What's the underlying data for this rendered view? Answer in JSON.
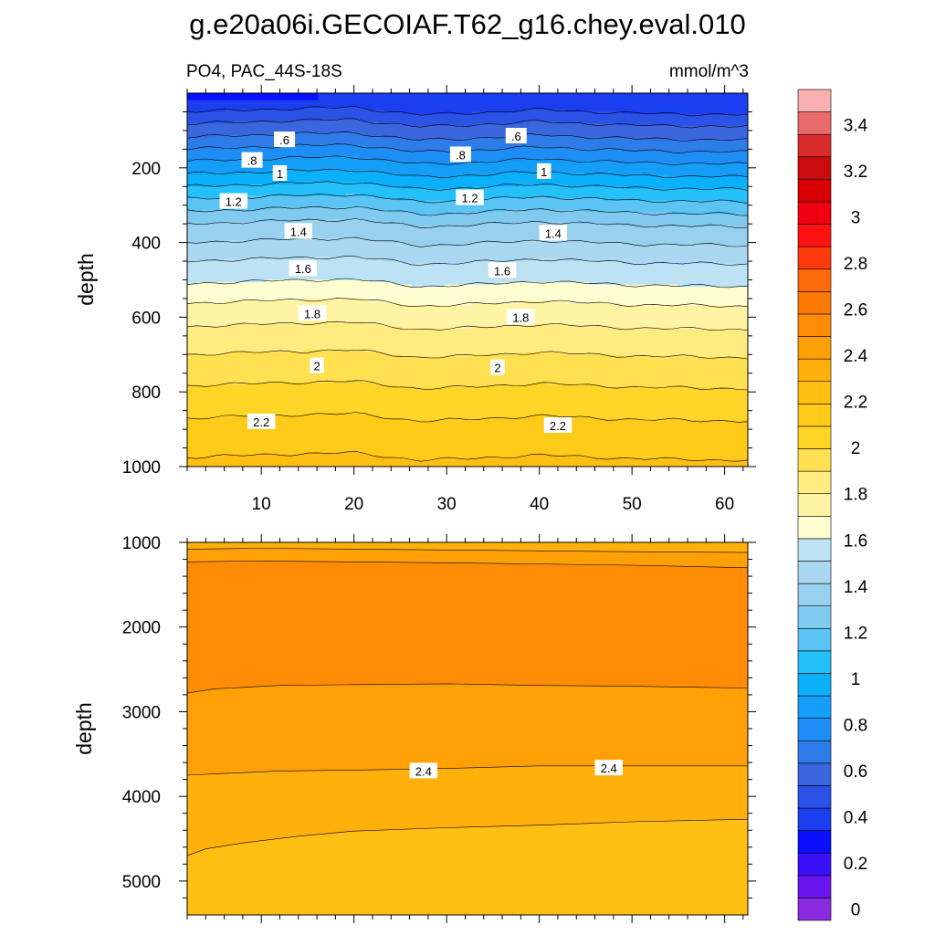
{
  "title": "g.e20a06i.GECOIAF.T62_g16.chey.eval.010",
  "chart_data": {
    "type": "heatmap",
    "variable_label": "PO4, PAC_44S-18S",
    "units": "mmol/m^3",
    "panels": [
      {
        "name": "upper",
        "ylabel": "depth",
        "x_range": [
          2,
          62.5
        ],
        "y_range": [
          0,
          1000
        ],
        "y_reversed": true,
        "y_ticks": [
          200,
          400,
          600,
          800,
          1000
        ],
        "y_tick_labels": [
          "200",
          "400",
          "600",
          "800",
          "1000"
        ],
        "x_ticks": [
          10,
          20,
          30,
          40,
          50,
          60
        ],
        "x_tick_labels": [
          "10",
          "20",
          "30",
          "40",
          "50",
          "60"
        ],
        "x_minor_ticks": [
          2,
          4,
          6,
          8,
          12,
          14,
          16,
          18,
          22,
          24,
          26,
          28,
          32,
          34,
          36,
          38,
          42,
          44,
          46,
          48,
          52,
          54,
          56,
          58,
          62
        ],
        "y_minor_ticks": [
          50,
          100,
          150,
          250,
          300,
          350,
          450,
          500,
          550,
          650,
          700,
          750,
          850,
          900,
          950
        ],
        "profile_depths": [
          0,
          25,
          50,
          75,
          100,
          125,
          150,
          175,
          200,
          250,
          300,
          350,
          400,
          450,
          500,
          550,
          600,
          650,
          700,
          750,
          800,
          850,
          900,
          950,
          1000
        ],
        "profile_values": [
          0.42,
          0.44,
          0.5,
          0.58,
          0.65,
          0.72,
          0.8,
          0.88,
          0.95,
          1.1,
          1.25,
          1.4,
          1.5,
          1.6,
          1.68,
          1.78,
          1.86,
          1.94,
          2.0,
          2.06,
          2.12,
          2.18,
          2.23,
          2.28,
          2.32
        ],
        "x_shift_points": [
          2,
          12,
          20,
          27,
          32,
          40,
          50,
          62.5
        ],
        "x_shift_depth": [
          0,
          -8,
          -12,
          8,
          4,
          -6,
          4,
          8
        ],
        "contour_levels": [
          0.5,
          0.6,
          0.7,
          0.8,
          0.9,
          1.0,
          1.1,
          1.2,
          1.3,
          1.4,
          1.5,
          1.6,
          1.7,
          1.8,
          1.9,
          2.0,
          2.1,
          2.2,
          2.3
        ],
        "contour_labels": [
          {
            "text": ".6",
            "x": 12.5,
            "y": 125
          },
          {
            "text": ".6",
            "x": 37.5,
            "y": 115
          },
          {
            "text": ".8",
            "x": 9,
            "y": 180
          },
          {
            "text": ".8",
            "x": 31.5,
            "y": 165
          },
          {
            "text": "1",
            "x": 12,
            "y": 215
          },
          {
            "text": "1",
            "x": 40.5,
            "y": 210
          },
          {
            "text": "1.2",
            "x": 7,
            "y": 290
          },
          {
            "text": "1.2",
            "x": 32.5,
            "y": 280
          },
          {
            "text": "1.4",
            "x": 14,
            "y": 370
          },
          {
            "text": "1.4",
            "x": 41.5,
            "y": 375
          },
          {
            "text": "1.6",
            "x": 14.5,
            "y": 470
          },
          {
            "text": "1.6",
            "x": 36,
            "y": 475
          },
          {
            "text": "1.8",
            "x": 15.5,
            "y": 590
          },
          {
            "text": "1.8",
            "x": 38,
            "y": 600
          },
          {
            "text": "2",
            "x": 16,
            "y": 730
          },
          {
            "text": "2",
            "x": 35.5,
            "y": 735
          },
          {
            "text": "2.2",
            "x": 10,
            "y": 880
          },
          {
            "text": "2.2",
            "x": 42,
            "y": 890
          }
        ]
      },
      {
        "name": "lower",
        "ylabel": "depth",
        "x_range": [
          2,
          62.5
        ],
        "y_range": [
          1000,
          5400
        ],
        "y_reversed": true,
        "y_ticks": [
          1000,
          2000,
          3000,
          4000,
          5000
        ],
        "y_tick_labels": [
          "1000",
          "2000",
          "3000",
          "4000",
          "5000"
        ],
        "x_ticks": [
          10,
          20,
          30,
          40,
          50,
          60
        ],
        "x_tick_labels": [],
        "x_minor_ticks": [
          2,
          4,
          6,
          8,
          12,
          14,
          16,
          18,
          22,
          24,
          26,
          28,
          32,
          34,
          36,
          38,
          42,
          44,
          46,
          48,
          52,
          54,
          56,
          58,
          62
        ],
        "y_minor_ticks": [
          1200,
          1400,
          1600,
          1800,
          2200,
          2400,
          2600,
          2800,
          3200,
          3400,
          3600,
          3800,
          4200,
          4400,
          4600,
          4800,
          5200
        ],
        "bands": [
          {
            "from": 2.4,
            "to": 2.5,
            "top": [
              [
                2,
                1000
              ],
              [
                62.5,
                1000
              ]
            ],
            "bottom": [
              [
                2,
                1080
              ],
              [
                10,
                1070
              ],
              [
                30,
                1090
              ],
              [
                50,
                1110
              ],
              [
                62.5,
                1120
              ]
            ]
          },
          {
            "from": 2.5,
            "to": 2.6,
            "top": [
              [
                2,
                1080
              ],
              [
                10,
                1070
              ],
              [
                30,
                1090
              ],
              [
                50,
                1110
              ],
              [
                62.5,
                1120
              ]
            ],
            "bottom": [
              [
                2,
                1230
              ],
              [
                10,
                1220
              ],
              [
                30,
                1240
              ],
              [
                50,
                1270
              ],
              [
                62.5,
                1300
              ]
            ]
          },
          {
            "from": 2.6,
            "to": 2.7,
            "top": [
              [
                2,
                1230
              ],
              [
                10,
                1220
              ],
              [
                30,
                1240
              ],
              [
                50,
                1270
              ],
              [
                62.5,
                1300
              ]
            ],
            "bottom": [
              [
                2,
                2780
              ],
              [
                5,
                2730
              ],
              [
                12,
                2690
              ],
              [
                20,
                2680
              ],
              [
                30,
                2670
              ],
              [
                40,
                2690
              ],
              [
                50,
                2700
              ],
              [
                62.5,
                2720
              ]
            ]
          },
          {
            "from": 2.5,
            "to": 2.6,
            "top": [
              [
                2,
                2780
              ],
              [
                5,
                2730
              ],
              [
                12,
                2690
              ],
              [
                20,
                2680
              ],
              [
                30,
                2670
              ],
              [
                40,
                2690
              ],
              [
                50,
                2700
              ],
              [
                62.5,
                2720
              ]
            ],
            "bottom": [
              [
                2,
                3750
              ],
              [
                6,
                3730
              ],
              [
                12,
                3700
              ],
              [
                20,
                3690
              ],
              [
                30,
                3670
              ],
              [
                40,
                3640
              ],
              [
                50,
                3640
              ],
              [
                62.5,
                3640
              ]
            ]
          },
          {
            "from": 2.4,
            "to": 2.5,
            "top": [
              [
                2,
                3750
              ],
              [
                6,
                3730
              ],
              [
                12,
                3700
              ],
              [
                20,
                3690
              ],
              [
                30,
                3670
              ],
              [
                40,
                3640
              ],
              [
                50,
                3640
              ],
              [
                62.5,
                3640
              ]
            ],
            "bottom": [
              [
                2,
                4700
              ],
              [
                4,
                4620
              ],
              [
                8,
                4550
              ],
              [
                14,
                4470
              ],
              [
                20,
                4410
              ],
              [
                30,
                4370
              ],
              [
                40,
                4340
              ],
              [
                50,
                4300
              ],
              [
                62.5,
                4270
              ]
            ]
          },
          {
            "from": 2.3,
            "to": 2.4,
            "top": [
              [
                2,
                4700
              ],
              [
                4,
                4620
              ],
              [
                8,
                4550
              ],
              [
                14,
                4470
              ],
              [
                20,
                4410
              ],
              [
                30,
                4370
              ],
              [
                40,
                4340
              ],
              [
                50,
                4300
              ],
              [
                62.5,
                4270
              ]
            ],
            "bottom": [
              [
                2,
                5400
              ],
              [
                62.5,
                5400
              ]
            ]
          }
        ],
        "contour_labels": [
          {
            "text": "2.4",
            "x": 27.5,
            "y": 3700
          },
          {
            "text": "2.4",
            "x": 47.5,
            "y": 3665
          }
        ]
      }
    ],
    "colorbar": {
      "levels": [
        0,
        0.1,
        0.2,
        0.3,
        0.4,
        0.5,
        0.6,
        0.7,
        0.8,
        0.9,
        1.0,
        1.1,
        1.2,
        1.3,
        1.4,
        1.5,
        1.6,
        1.7,
        1.8,
        1.9,
        2.0,
        2.1,
        2.2,
        2.3,
        2.4,
        2.5,
        2.6,
        2.7,
        2.8,
        2.9,
        3.0,
        3.1,
        3.2,
        3.3,
        3.4,
        3.5,
        3.6
      ],
      "labels": [
        "0",
        "0.2",
        "0.4",
        "0.6",
        "0.8",
        "1",
        "1.2",
        "1.4",
        "1.6",
        "1.8",
        "2",
        "2.2",
        "2.4",
        "2.6",
        "2.8",
        "3",
        "3.2",
        "3.4"
      ],
      "label_values": [
        0,
        0.2,
        0.4,
        0.6,
        0.8,
        1.0,
        1.2,
        1.4,
        1.6,
        1.8,
        2.0,
        2.2,
        2.4,
        2.6,
        2.8,
        3.0,
        3.2,
        3.4
      ],
      "colors": [
        "#8a2be2",
        "#6a14f0",
        "#3a10f8",
        "#0a10ff",
        "#1a3ef0",
        "#2a52e6",
        "#3a66de",
        "#2e7ce8",
        "#1e8ef6",
        "#149ef8",
        "#0ab0fa",
        "#24c0fa",
        "#5cc4f4",
        "#80caf0",
        "#98d0f0",
        "#aad8f2",
        "#bce2f4",
        "#fffed0",
        "#fff4a4",
        "#ffec80",
        "#ffe050",
        "#ffd628",
        "#ffca18",
        "#ffbe12",
        "#ffb00a",
        "#ffa006",
        "#ff8c04",
        "#ff7a04",
        "#ff6a08",
        "#ff3a0a",
        "#ff1212",
        "#f00010",
        "#d80000",
        "#cc0c0c",
        "#d82c2c",
        "#e86a6a",
        "#f8b0b0"
      ]
    }
  }
}
